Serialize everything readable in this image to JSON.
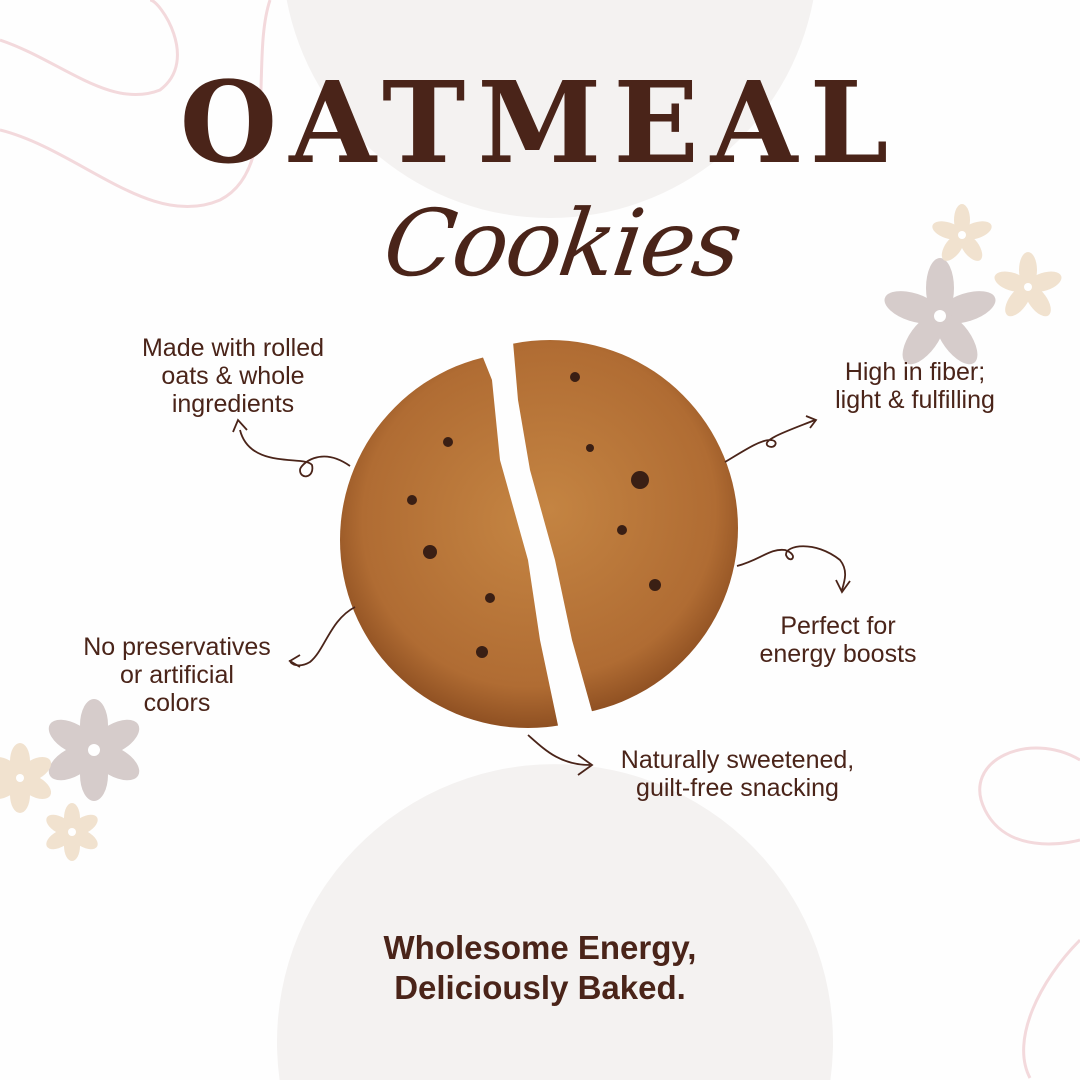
{
  "title": "OATMEAL",
  "subtitle": "Cookies",
  "features": {
    "rolled_oats": [
      "Made with rolled",
      "oats & whole",
      "ingredients"
    ],
    "fiber": [
      "High in fiber;",
      "light & fulfilling"
    ],
    "energy": [
      "Perfect for",
      "energy boosts"
    ],
    "preservatives": [
      "No preservatives",
      "or artificial",
      "colors"
    ],
    "sweetened": [
      "Naturally sweetened,",
      "guilt-free snacking"
    ]
  },
  "tagline": [
    "Wholesome Energy,",
    "Deliciously Baked."
  ],
  "colors": {
    "text": "#4a2419",
    "circle": "#f4f2f1",
    "cookie": "#b9743a",
    "swirl": "#f3d9dc",
    "flower_gray": "#d6cccb",
    "flower_beige": "#f1e2cf"
  },
  "image": "oatmeal-cookie-broken-in-half"
}
